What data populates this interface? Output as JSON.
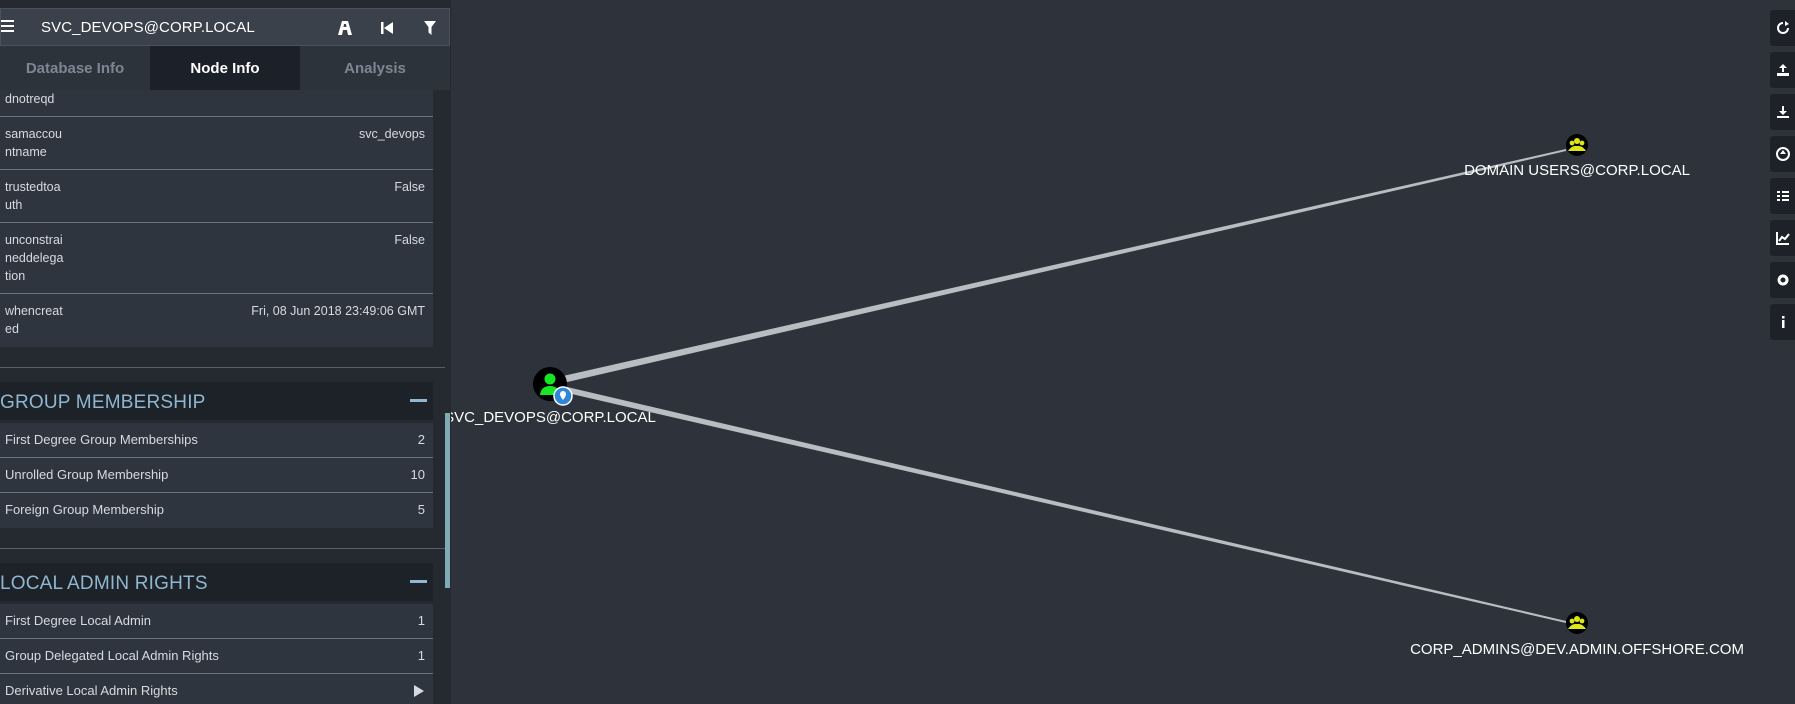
{
  "search": {
    "value": "SVC_DEVOPS@CORP.LOCAL",
    "tools": [
      "pathfinding-icon",
      "back-icon",
      "filter-icon"
    ]
  },
  "tabs": [
    {
      "label": "Database Info",
      "active": false
    },
    {
      "label": "Node Info",
      "active": true
    },
    {
      "label": "Analysis",
      "active": false
    }
  ],
  "properties": [
    {
      "key": "dnotreqd",
      "value": ""
    },
    {
      "key": "samaccountname",
      "value": "svc_devops"
    },
    {
      "key": "trustedtoauth",
      "value": "False"
    },
    {
      "key": "unconstraineddelegation",
      "value": "False"
    },
    {
      "key": "whencreated",
      "value": "Fri, 08 Jun 2018 23:49:06 GMT"
    }
  ],
  "group_membership": {
    "title": "GROUP MEMBERSHIP",
    "items": [
      {
        "label": "First Degree Group Memberships",
        "count": "2"
      },
      {
        "label": "Unrolled Group Membership",
        "count": "10"
      },
      {
        "label": "Foreign Group Membership",
        "count": "5"
      }
    ]
  },
  "local_admin": {
    "title": "LOCAL ADMIN RIGHTS",
    "items": [
      {
        "label": "First Degree Local Admin",
        "count": "1"
      },
      {
        "label": "Group Delegated Local Admin Rights",
        "count": "1"
      },
      {
        "label": "Derivative Local Admin Rights",
        "count": ""
      }
    ]
  },
  "graph": {
    "nodes": [
      {
        "label": "SVC_DEVOPS@CORP.LOCAL",
        "type": "user",
        "color": "#17e625"
      },
      {
        "label": "DOMAIN USERS@CORP.LOCAL",
        "type": "group",
        "color": "#dbe617"
      },
      {
        "label": "CORP_ADMINS@DEV.ADMIN.OFFSHORE.COM",
        "type": "group",
        "color": "#dbe617"
      }
    ]
  },
  "toolbar": [
    "refresh-icon",
    "export-icon",
    "import-icon",
    "upload-icon",
    "queries-icon",
    "chart-icon",
    "settings-icon",
    "info-icon"
  ],
  "colors": {
    "background": "#2e333b",
    "panel": "#252a31",
    "section_title": "#8fb7cf",
    "user_node": "#17e625",
    "group_node": "#dbe617"
  }
}
